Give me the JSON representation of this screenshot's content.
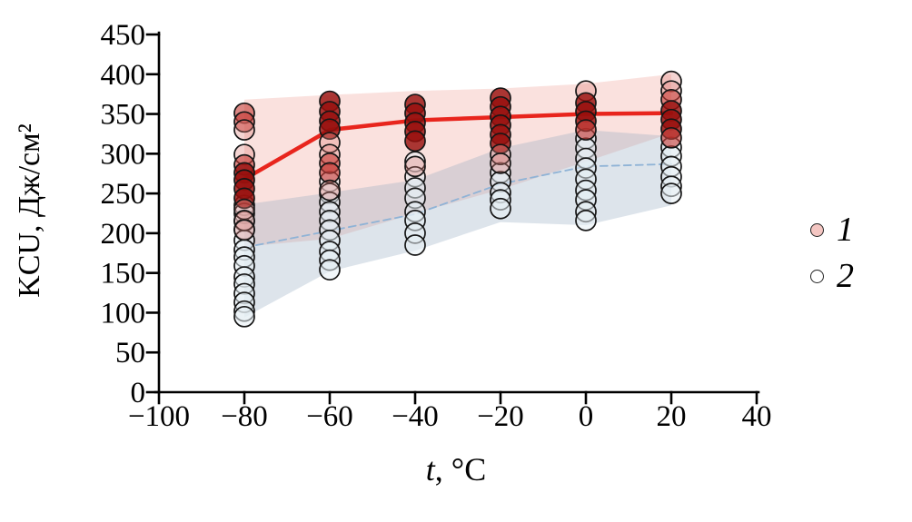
{
  "chart_data": {
    "type": "scatter",
    "title": "",
    "ylabel": "KCU, Дж/см²",
    "xlabel_var": "t",
    "xlabel_unit": ", °C",
    "xlim": [
      -100,
      40
    ],
    "ylim": [
      0,
      450
    ],
    "grid": false,
    "legend_position": "right-outside",
    "x_ticks": [
      {
        "v": -100,
        "label": "−100"
      },
      {
        "v": -80,
        "label": "−80"
      },
      {
        "v": -60,
        "label": "−60"
      },
      {
        "v": -40,
        "label": "−40"
      },
      {
        "v": -20,
        "label": "−20"
      },
      {
        "v": 0,
        "label": "0"
      },
      {
        "v": 20,
        "label": "20"
      },
      {
        "v": 40,
        "label": "40"
      }
    ],
    "y_ticks": [
      {
        "v": 0,
        "label": "0"
      },
      {
        "v": 50,
        "label": "50"
      },
      {
        "v": 100,
        "label": "100"
      },
      {
        "v": 150,
        "label": "150"
      },
      {
        "v": 200,
        "label": "200"
      },
      {
        "v": 250,
        "label": "250"
      },
      {
        "v": 300,
        "label": "300"
      },
      {
        "v": 350,
        "label": "350"
      },
      {
        "v": 400,
        "label": "400"
      },
      {
        "v": 450,
        "label": "450"
      }
    ],
    "categories": [
      -80,
      -60,
      -40,
      -20,
      0,
      20
    ],
    "legend": {
      "items": [
        {
          "label": "1",
          "fill": "#f4c6c2"
        },
        {
          "label": "2",
          "fill": "#ffffff"
        }
      ]
    },
    "series": [
      {
        "name": "1",
        "line_color": "#e8251d",
        "line_width": 4.5,
        "line_dash": "",
        "band_fill": "rgba(242,176,168,0.38)",
        "shade_fills": {
          "dark": "rgba(152,16,14,0.82)",
          "mid": "rgba(198,62,56,0.62)",
          "pale": "rgba(224,128,122,0.34)"
        },
        "marker_fill": "rgba(198,62,56,0.62)",
        "trend": [
          268,
          330,
          342,
          346,
          350,
          351
        ],
        "band_upper": [
          368,
          374,
          379,
          382,
          388,
          400
        ],
        "band_lower": [
          183,
          193,
          225,
          255,
          290,
          326
        ],
        "points": [
          {
            "t": -80,
            "values": [
              {
                "v": 351,
                "shade": "mid"
              },
              {
                "v": 340,
                "shade": "mid"
              },
              {
                "v": 330,
                "shade": "pale"
              },
              {
                "v": 299,
                "shade": "pale"
              },
              {
                "v": 286,
                "shade": "mid"
              },
              {
                "v": 276,
                "shade": "dark"
              },
              {
                "v": 267,
                "shade": "dark"
              },
              {
                "v": 256,
                "shade": "dark"
              },
              {
                "v": 244,
                "shade": "dark"
              },
              {
                "v": 230,
                "shade": "pale"
              },
              {
                "v": 216,
                "shade": "pale"
              },
              {
                "v": 204,
                "shade": "pale"
              }
            ]
          },
          {
            "t": -60,
            "values": [
              {
                "v": 366,
                "shade": "dark"
              },
              {
                "v": 353,
                "shade": "dark"
              },
              {
                "v": 341,
                "shade": "dark"
              },
              {
                "v": 331,
                "shade": "dark"
              },
              {
                "v": 314,
                "shade": "pale"
              },
              {
                "v": 299,
                "shade": "pale"
              },
              {
                "v": 288,
                "shade": "mid"
              },
              {
                "v": 276,
                "shade": "mid"
              },
              {
                "v": 254,
                "shade": "pale"
              }
            ]
          },
          {
            "t": -40,
            "values": [
              {
                "v": 362,
                "shade": "dark"
              },
              {
                "v": 351,
                "shade": "dark"
              },
              {
                "v": 339,
                "shade": "dark"
              },
              {
                "v": 328,
                "shade": "dark"
              },
              {
                "v": 316,
                "shade": "dark"
              },
              {
                "v": 284,
                "shade": "pale"
              }
            ]
          },
          {
            "t": -20,
            "values": [
              {
                "v": 370,
                "shade": "dark"
              },
              {
                "v": 359,
                "shade": "dark"
              },
              {
                "v": 347,
                "shade": "dark"
              },
              {
                "v": 336,
                "shade": "dark"
              },
              {
                "v": 324,
                "shade": "dark"
              },
              {
                "v": 313,
                "shade": "dark"
              },
              {
                "v": 299,
                "shade": "pale"
              },
              {
                "v": 288,
                "shade": "pale"
              }
            ]
          },
          {
            "t": 0,
            "values": [
              {
                "v": 379,
                "shade": "pale"
              },
              {
                "v": 364,
                "shade": "dark"
              },
              {
                "v": 353,
                "shade": "dark"
              },
              {
                "v": 341,
                "shade": "dark"
              },
              {
                "v": 330,
                "shade": "mid"
              }
            ]
          },
          {
            "t": 20,
            "values": [
              {
                "v": 391,
                "shade": "pale"
              },
              {
                "v": 379,
                "shade": "pale"
              },
              {
                "v": 368,
                "shade": "mid"
              },
              {
                "v": 354,
                "shade": "dark"
              },
              {
                "v": 343,
                "shade": "dark"
              },
              {
                "v": 331,
                "shade": "dark"
              },
              {
                "v": 320,
                "shade": "mid"
              }
            ]
          }
        ]
      },
      {
        "name": "2",
        "line_color": "#8fb3d6",
        "line_width": 1.8,
        "line_dash": "8 5",
        "band_fill": "rgba(150,170,194,0.32)",
        "marker_fill": "rgba(230,238,244,0.55)",
        "trend": [
          182,
          203,
          224,
          262,
          284,
          287
        ],
        "band_upper": [
          236,
          251,
          267,
          307,
          330,
          322
        ],
        "band_lower": [
          94,
          152,
          178,
          214,
          210,
          235
        ],
        "points": [
          {
            "t": -80,
            "values": [
              {
                "v": 235
              },
              {
                "v": 225
              },
              {
                "v": 215
              },
              {
                "v": 205
              },
              {
                "v": 191
              },
              {
                "v": 179
              },
              {
                "v": 170
              },
              {
                "v": 159
              },
              {
                "v": 145
              },
              {
                "v": 136
              },
              {
                "v": 124
              },
              {
                "v": 113
              },
              {
                "v": 102
              },
              {
                "v": 95
              }
            ]
          },
          {
            "t": -60,
            "values": [
              {
                "v": 265
              },
              {
                "v": 250
              },
              {
                "v": 239
              },
              {
                "v": 227
              },
              {
                "v": 216
              },
              {
                "v": 204
              },
              {
                "v": 191
              },
              {
                "v": 177
              },
              {
                "v": 166
              },
              {
                "v": 154
              }
            ]
          },
          {
            "t": -40,
            "values": [
              {
                "v": 290
              },
              {
                "v": 271
              },
              {
                "v": 257
              },
              {
                "v": 244
              },
              {
                "v": 227
              },
              {
                "v": 216
              },
              {
                "v": 200
              },
              {
                "v": 185
              }
            ]
          },
          {
            "t": -20,
            "values": [
              {
                "v": 276
              },
              {
                "v": 265
              },
              {
                "v": 251
              },
              {
                "v": 242
              },
              {
                "v": 231
              }
            ]
          },
          {
            "t": 0,
            "values": [
              {
                "v": 319
              },
              {
                "v": 307
              },
              {
                "v": 294
              },
              {
                "v": 282
              },
              {
                "v": 268
              },
              {
                "v": 254
              },
              {
                "v": 242
              },
              {
                "v": 227
              },
              {
                "v": 216
              }
            ]
          },
          {
            "t": 20,
            "values": [
              {
                "v": 308
              },
              {
                "v": 297
              },
              {
                "v": 284
              },
              {
                "v": 271
              },
              {
                "v": 259
              },
              {
                "v": 250
              }
            ]
          }
        ]
      }
    ]
  }
}
